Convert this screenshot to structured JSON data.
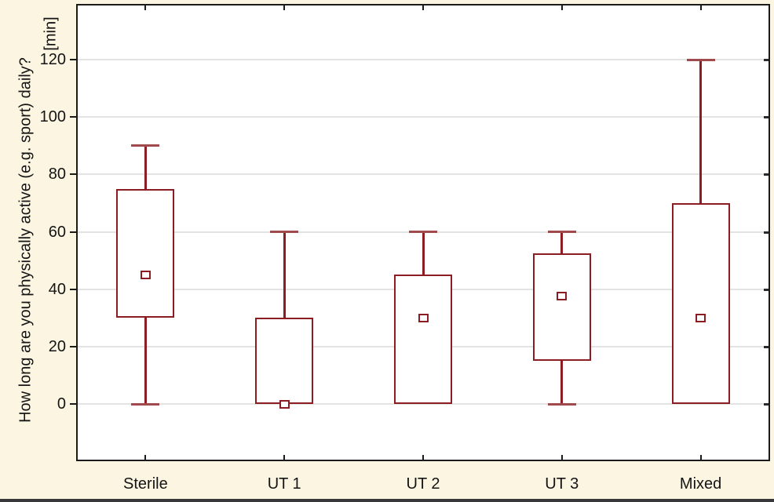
{
  "figure": {
    "background": "#fbf5e2",
    "plot_background": "#ffffff",
    "frame_color": "#1b1b1b",
    "grid_color": "#e3e3e3",
    "box_color": "#8c1d22",
    "whisker_cap_color": "#a04a4e",
    "text_color": "#141414",
    "bottom_bar_color": "#383838"
  },
  "chart_data": {
    "type": "box",
    "title": "",
    "ylabel": "How long are you physically active (e.g. sport) daily?",
    "y_unit": "[min]",
    "xlabel": "",
    "ylim": [
      -20,
      140
    ],
    "yticks": [
      0,
      20,
      40,
      60,
      80,
      100,
      120
    ],
    "grid": "horizontal",
    "legend": "none",
    "categories": [
      "Sterile",
      "UT 1",
      "UT 2",
      "UT 3",
      "Mixed"
    ],
    "boxes": [
      {
        "label": "Sterile",
        "whisker_low": 0,
        "q1": 30,
        "mean": 45,
        "q3": 75,
        "whisker_high": 90
      },
      {
        "label": "UT 1",
        "whisker_low": 0,
        "q1": 0,
        "mean": 0,
        "q3": 30,
        "whisker_high": 60
      },
      {
        "label": "UT 2",
        "whisker_low": 0,
        "q1": 0,
        "mean": 30,
        "q3": 45,
        "whisker_high": 60
      },
      {
        "label": "UT 3",
        "whisker_low": 0,
        "q1": 15,
        "mean": 37.5,
        "q3": 52.5,
        "whisker_high": 60
      },
      {
        "label": "Mixed",
        "whisker_low": 0,
        "q1": 0,
        "mean": 30,
        "q3": 70,
        "whisker_high": 120
      }
    ]
  }
}
